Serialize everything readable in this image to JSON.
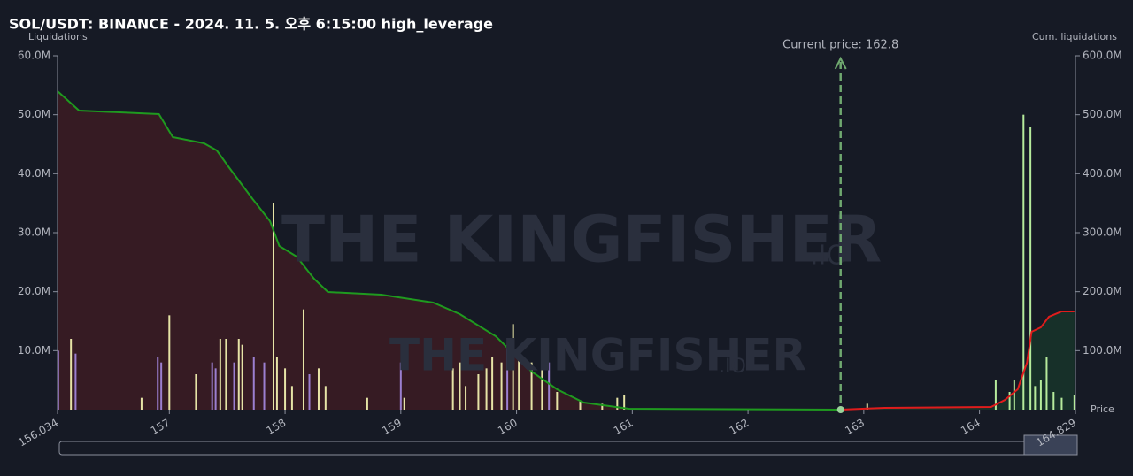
{
  "chart_data": {
    "type": "bar",
    "title": "SOL/USDT: BINANCE - 2024. 11. 5. 오후 6:15:00 high_leverage",
    "y_label": "Liquidations",
    "y2_label": "Cum. liquidations",
    "x_label": "Price",
    "watermark": "THE KINGFISHER",
    "watermark_suffix": ".IO",
    "annotation": {
      "text": "Current price: 162.8",
      "x": 162.8,
      "color": "#6fa86f"
    },
    "xlim": [
      156.034,
      164.829
    ],
    "xticks": [
      156.034,
      157,
      158,
      159,
      160,
      161,
      162,
      163,
      164,
      164.829
    ],
    "ylim": [
      0,
      60000000
    ],
    "yticks": [
      {
        "value": 10000000,
        "label": "10.0M"
      },
      {
        "value": 20000000,
        "label": "20.0M"
      },
      {
        "value": 30000000,
        "label": "30.0M"
      },
      {
        "value": 40000000,
        "label": "40.0M"
      },
      {
        "value": 50000000,
        "label": "50.0M"
      },
      {
        "value": 60000000,
        "label": "60.0M"
      }
    ],
    "y2lim": [
      0,
      600000000
    ],
    "y2ticks": [
      {
        "value": 100000000,
        "label": "100.0M"
      },
      {
        "value": 200000000,
        "label": "200.0M"
      },
      {
        "value": 300000000,
        "label": "300.0M"
      },
      {
        "value": 400000000,
        "label": "400.0M"
      },
      {
        "value": 500000000,
        "label": "500.0M"
      },
      {
        "value": 600000000,
        "label": "600.0M"
      }
    ],
    "series": [
      {
        "type": "bar",
        "color": "#e6e4a6",
        "x": [
          156.15,
          156.76,
          157.0,
          157.23,
          157.44,
          157.49,
          157.6,
          157.63,
          157.9,
          157.93,
          158.0,
          158.06,
          158.16,
          158.29,
          158.35,
          158.71,
          159.03,
          159.45,
          159.51,
          159.56,
          159.67,
          159.74,
          159.79,
          159.87,
          159.97,
          160.02,
          160.13,
          160.22,
          160.35,
          160.55,
          160.74,
          160.87,
          160.93,
          163.03
        ],
        "values": [
          12000000.0,
          2000000.0,
          16000000.0,
          6000000.0,
          12000000.0,
          12000000.0,
          12000000.0,
          11000000.0,
          35000000.0,
          9000000.0,
          7000000.0,
          4000000.0,
          17000000.0,
          7000000.0,
          4000000.0,
          2000000.0,
          2000000.0,
          7000000.0,
          8000000.0,
          4000000.0,
          6000000.0,
          7000000.0,
          9000000.0,
          8000000.0,
          14500000.0,
          9000000.0,
          8000000.0,
          7000000.0,
          3000000.0,
          1500000.0,
          1000000.0,
          2000000.0,
          2500000.0,
          1000000.0
        ]
      },
      {
        "type": "bar",
        "color": "#9b7fd0",
        "x": [
          156.04,
          156.19,
          156.9,
          156.93,
          157.37,
          157.4,
          157.56,
          157.73,
          157.82,
          158.21,
          159.0,
          159.92,
          160.28
        ],
        "values": [
          10000000.0,
          9500000.0,
          9000000.0,
          8000000.0,
          8000000.0,
          7000000.0,
          8000000.0,
          9000000.0,
          8000000.0,
          6000000.0,
          8000000.0,
          11000000.0,
          8000000.0
        ]
      },
      {
        "type": "bar",
        "color": "#b6eb9c",
        "x": [
          164.14,
          164.26,
          164.3,
          164.38,
          164.44,
          164.48,
          164.53,
          164.58,
          164.64,
          164.71,
          164.82
        ],
        "values": [
          5000000.0,
          3000000.0,
          5000000.0,
          50000000.0,
          48000000.0,
          4000000.0,
          5000000.0,
          9000000.0,
          3000000.0,
          2000000.0,
          2500000.0
        ]
      },
      {
        "type": "line",
        "axis": "y2",
        "color": "#1f9a1f",
        "fill": "#3a1c24",
        "x": [
          156.034,
          156.11,
          156.22,
          156.91,
          157.03,
          157.3,
          157.41,
          157.52,
          157.72,
          157.87,
          157.95,
          158.1,
          158.25,
          158.37,
          158.83,
          159.28,
          159.51,
          159.82,
          160.13,
          160.35,
          160.58,
          160.97,
          162.8
        ],
        "values": [
          540000000,
          526500000,
          507000000,
          501000000,
          462000000,
          451500000,
          439500000,
          409500000,
          357000000,
          319500000,
          277500000,
          259500000,
          222000000,
          199500000,
          195000000,
          181500000,
          162000000,
          124500000,
          64500000,
          34500000,
          12000000,
          1500000,
          0
        ]
      },
      {
        "type": "line",
        "axis": "y2",
        "color": "#e01c1c",
        "fill": "#17332a",
        "x": [
          162.8,
          163.18,
          164.1,
          164.22,
          164.33,
          164.41,
          164.45,
          164.53,
          164.6,
          164.71,
          164.82
        ],
        "values": [
          0,
          3000000,
          4500000,
          16500000,
          34500000,
          79500000,
          132000000,
          139500000,
          157500000,
          166500000,
          166500000
        ]
      }
    ]
  }
}
